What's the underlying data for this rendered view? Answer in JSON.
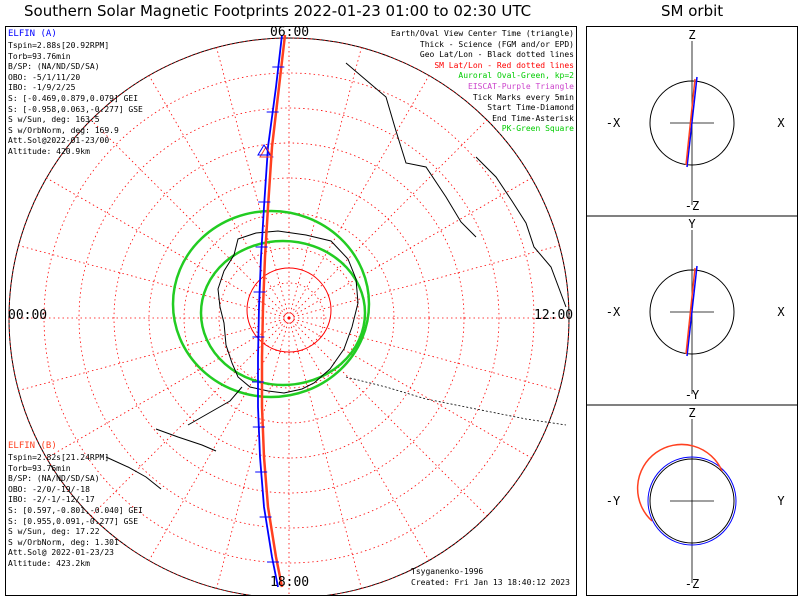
{
  "main_title": "Southern Solar Magnetic Footprints 2022-01-23 01:00 to 02:30 UTC",
  "orbit_title": "SM orbit",
  "clock_labels": {
    "top": "06:00",
    "bottom": "18:00",
    "left": "00:00",
    "right": "12:00"
  },
  "elfin_a": {
    "name": "ELFIN (A)",
    "color": "#0000ff",
    "lines": [
      "Tspin=2.88s[20.92RPM]",
      "Torb=93.76min",
      "B/SP: (NA/ND/SD/SA)",
      "OBO: -5/1/11/20",
      "IBO: -1/9/2/25",
      "S: [-0.469,0.879,0.079] GEI",
      "S: [-0.958,0.063,-0.277] GSE",
      "S w/Sun, deg: 163.5",
      "S w/OrbNorm, deg: 169.9",
      "Att.Sol@2022-01-23/00",
      "Altitude: 420.9km"
    ]
  },
  "elfin_b": {
    "name": "ELFIN (B)",
    "color": "#ff4020",
    "lines": [
      "Tspin=2.82s[21.24RPM]",
      "Torb=93.76min",
      "B/SP: (NA/ND/SD/SA)",
      "OBO: -2/0/-19/-18",
      "IBO: -2/-1/-12/-17",
      "S: [0.597,-0.801,-0.040] GEI",
      "S: [0.955,0.091,-0.277] GSE",
      "S w/Sun, deg: 17.22",
      "S w/OrbNorm, deg: 1.301",
      "Att.Sol@ 2022-01-23/23",
      "Altitude: 423.2km"
    ]
  },
  "legend": [
    {
      "text": "Earth/Oval View Center Time (triangle)",
      "color": "#000000"
    },
    {
      "text": "Thick - Science (FGM and/or EPD)",
      "color": "#000000"
    },
    {
      "text": "Geo Lat/Lon - Black dotted lines",
      "color": "#000000"
    },
    {
      "text": "SM Lat/Lon - Red dotted lines",
      "color": "#ff0000"
    },
    {
      "text": "Auroral Oval-Green, kp=2",
      "color": "#00cc00"
    },
    {
      "text": "EISCAT-Purple Triangle",
      "color": "#cc44cc"
    },
    {
      "text": "Tick Marks every 5min",
      "color": "#000000"
    },
    {
      "text": "Start Time-Diamond",
      "color": "#000000"
    },
    {
      "text": "End Time-Asterisk",
      "color": "#000000"
    },
    {
      "text": "PK-Green Square",
      "color": "#00cc00"
    }
  ],
  "footer": {
    "model": "Tsyganenko-1996",
    "created": "Created: Fri Jan 13 18:40:12 2023"
  },
  "orbit_panels": [
    {
      "top": "Z",
      "bottom": "-Z",
      "left": "-X",
      "right": "X"
    },
    {
      "top": "Y",
      "bottom": "-Y",
      "left": "-X",
      "right": "X"
    },
    {
      "top": "Z",
      "bottom": "-Z",
      "left": "-Y",
      "right": "Y"
    }
  ],
  "colors": {
    "sm_grid": "#ff0000",
    "oval": "#22cc22",
    "elfin_a_track": "#0000ff",
    "elfin_b_track": "#ff4020"
  }
}
